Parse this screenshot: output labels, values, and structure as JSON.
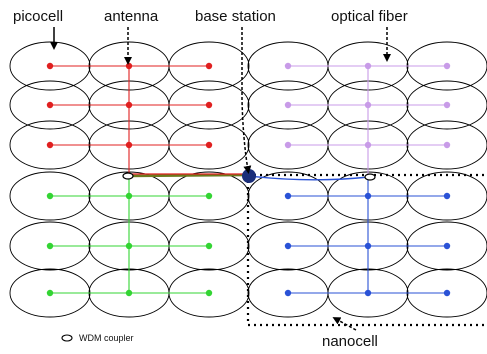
{
  "labels": {
    "picocell": "picocell",
    "antenna": "antenna",
    "base_station": "base station",
    "optical_fiber": "optical fiber",
    "nanocell": "nanocell",
    "wdm_coupler": "WDM coupler"
  },
  "colors": {
    "red": "#e02020",
    "violet": "#c89be8",
    "green": "#33d433",
    "blue": "#2a52d6",
    "cell_outline": "#000000",
    "base_station": "#1a2e7a",
    "olive_fiber": "#6b7a1e"
  },
  "grid": {
    "cell_columns": 6,
    "cell_rows": 6,
    "quadrants": [
      {
        "name": "top-left",
        "color": "red",
        "row_range": [
          0,
          2
        ],
        "col_range": [
          0,
          2
        ]
      },
      {
        "name": "top-right",
        "color": "violet",
        "row_range": [
          0,
          2
        ],
        "col_range": [
          3,
          5
        ]
      },
      {
        "name": "bottom-left",
        "color": "green",
        "row_range": [
          3,
          5
        ],
        "col_range": [
          0,
          2
        ]
      },
      {
        "name": "bottom-right",
        "color": "blue",
        "row_range": [
          3,
          5
        ],
        "col_range": [
          3,
          5
        ]
      }
    ]
  }
}
